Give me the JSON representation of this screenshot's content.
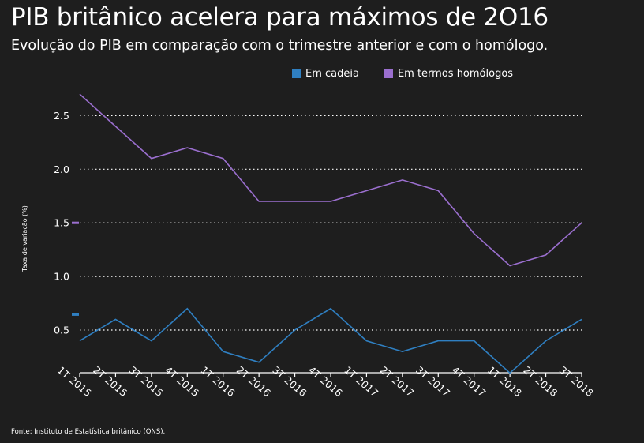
{
  "header": {
    "title": "PIB britânico acelera para máximos de 2O16",
    "subtitle": "Evolução do PIB em comparação com o trimestre anterior e com o homólogo."
  },
  "footer": {
    "source": "Fonte: Instituto de Estatística britânico (ONS)."
  },
  "colors": {
    "background": "#1e1e1e",
    "cadeia": "#2f7fc1",
    "homologos": "#9b6fcf",
    "grid": "#ffffff"
  },
  "chart_data": {
    "type": "line",
    "title": "PIB britânico acelera para máximos de 2O16",
    "subtitle": "Evolução do PIB em comparação com o trimestre anterior e com o homólogo.",
    "xlabel": "",
    "ylabel": "Taxa de variação (%)",
    "categories": [
      "1T 2015",
      "2T 2015",
      "3T 2015",
      "4T 2015",
      "1T 2016",
      "2T 2016",
      "3T 2016",
      "4T 2016",
      "1T 2017",
      "2T 2017",
      "3T 2017",
      "4T 2017",
      "1T 2018",
      "2T 2018",
      "3T 2018"
    ],
    "series": [
      {
        "name": "Em cadeia",
        "color": "#2f7fc1",
        "values": [
          0.4,
          0.6,
          0.4,
          0.7,
          0.3,
          0.2,
          0.5,
          0.7,
          0.4,
          0.3,
          0.4,
          0.4,
          0.1,
          0.4,
          0.6
        ]
      },
      {
        "name": "Em termos homólogos",
        "color": "#9b6fcf",
        "values": [
          2.7,
          2.4,
          2.1,
          2.2,
          2.1,
          1.7,
          1.7,
          1.7,
          1.8,
          1.9,
          1.8,
          1.4,
          1.1,
          1.2,
          1.5
        ]
      }
    ],
    "yticks": [
      "0.5",
      "1.0",
      "1.5",
      "2.0",
      "2.5"
    ],
    "ytick_values": [
      0.5,
      1.0,
      1.5,
      2.0,
      2.5
    ],
    "ylim": [
      0.1,
      2.7
    ],
    "grid": "horizontal dotted",
    "legend_position": "top"
  }
}
